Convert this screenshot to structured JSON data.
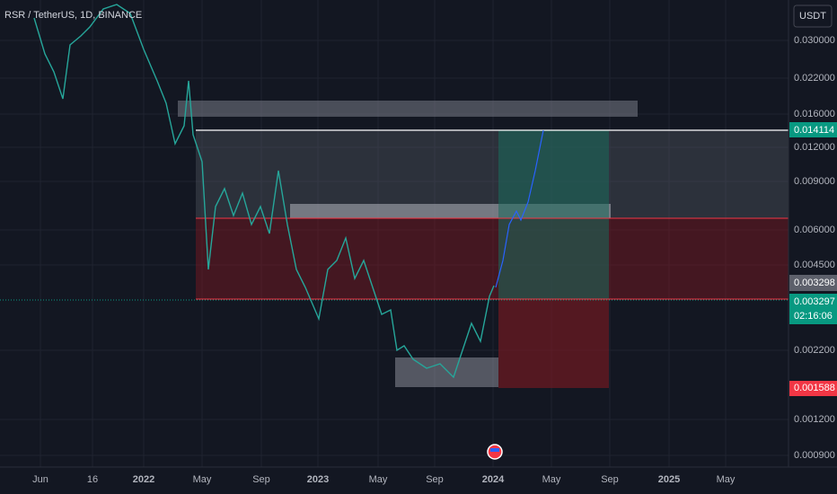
{
  "header": {
    "title": "RSR / TetherUS, 1D, BINANCE",
    "currency": "USDT"
  },
  "price_axis": {
    "labels": [
      "0.030000",
      "0.022000",
      "0.016000",
      "0.012000",
      "0.009000",
      "0.006000",
      "0.004500",
      "0.002200",
      "0.001200",
      "0.000900"
    ]
  },
  "price_badges": {
    "take_profit": "0.014114",
    "entry": "0.003298",
    "last_price": "0.003297",
    "countdown": "02:16:06",
    "stop_loss": "0.001588"
  },
  "time_axis": {
    "labels": [
      "Jun",
      "16",
      "2022",
      "May",
      "Sep",
      "2023",
      "May",
      "Sep",
      "2024",
      "May",
      "Sep",
      "2025",
      "May"
    ]
  }
}
